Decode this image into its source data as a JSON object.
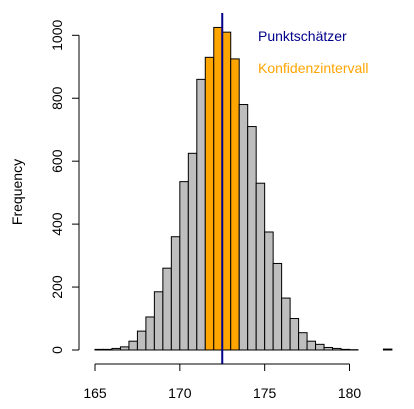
{
  "chart_data": {
    "type": "bar",
    "subtype": "histogram",
    "title": "",
    "xlabel": "",
    "ylabel": "Frequency",
    "bin_width": 0.5,
    "bins": [
      {
        "x0": 165.0,
        "count": 2
      },
      {
        "x0": 165.5,
        "count": 2
      },
      {
        "x0": 166.0,
        "count": 5
      },
      {
        "x0": 166.5,
        "count": 10
      },
      {
        "x0": 167.0,
        "count": 28
      },
      {
        "x0": 167.5,
        "count": 60
      },
      {
        "x0": 168.0,
        "count": 105
      },
      {
        "x0": 168.5,
        "count": 185
      },
      {
        "x0": 169.0,
        "count": 260
      },
      {
        "x0": 169.5,
        "count": 360
      },
      {
        "x0": 170.0,
        "count": 535
      },
      {
        "x0": 170.5,
        "count": 625
      },
      {
        "x0": 171.0,
        "count": 860
      },
      {
        "x0": 171.5,
        "count": 930
      },
      {
        "x0": 172.0,
        "count": 1025
      },
      {
        "x0": 172.5,
        "count": 1010
      },
      {
        "x0": 173.0,
        "count": 925
      },
      {
        "x0": 173.5,
        "count": 780
      },
      {
        "x0": 174.0,
        "count": 710
      },
      {
        "x0": 174.5,
        "count": 530
      },
      {
        "x0": 175.0,
        "count": 375
      },
      {
        "x0": 175.5,
        "count": 275
      },
      {
        "x0": 176.0,
        "count": 165
      },
      {
        "x0": 176.5,
        "count": 100
      },
      {
        "x0": 177.0,
        "count": 55
      },
      {
        "x0": 177.5,
        "count": 28
      },
      {
        "x0": 178.0,
        "count": 18
      },
      {
        "x0": 178.5,
        "count": 8
      },
      {
        "x0": 179.0,
        "count": 5
      },
      {
        "x0": 179.5,
        "count": 2
      },
      {
        "x0": 180.0,
        "count": 1
      },
      {
        "x0": 180.5,
        "count": 0
      },
      {
        "x0": 181.0,
        "count": 0
      },
      {
        "x0": 181.5,
        "count": 0
      },
      {
        "x0": 182.0,
        "count": 3
      }
    ],
    "highlight_range": [
      171.5,
      173.5
    ],
    "point_estimate": 172.5,
    "xlim": [
      165,
      182.5
    ],
    "ylim": [
      0,
      1050
    ],
    "xticks": [
      165,
      170,
      175,
      180
    ],
    "yticks": [
      0,
      200,
      400,
      600,
      800,
      1000
    ],
    "grid": false,
    "colors": {
      "bar_fill": "#bebebe",
      "highlight_fill": "#ffa500",
      "bar_stroke": "#000000",
      "estimate_line": "#00008b",
      "legend_estimate": "#00008b",
      "legend_interval": "#ffa500"
    },
    "legend": {
      "position": "top-right",
      "entries": [
        "Punktschätzer",
        "Konfidenzintervall"
      ]
    }
  }
}
